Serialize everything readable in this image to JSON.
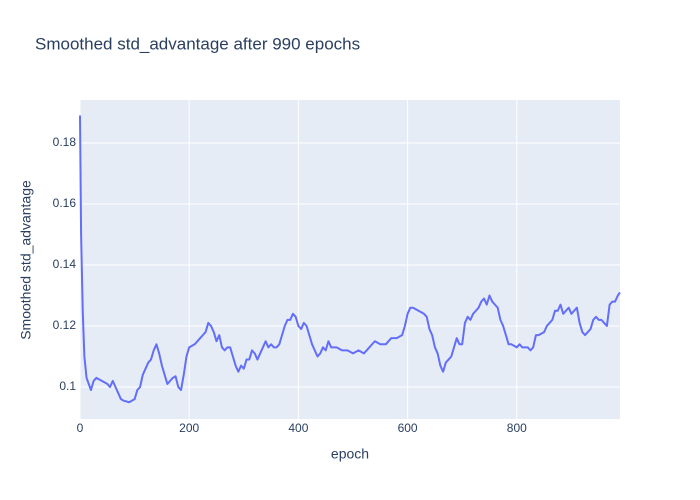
{
  "chart_data": {
    "type": "line",
    "title": "Smoothed std_advantage after 990 epochs",
    "x_label": "epoch",
    "y_label": "Smoothed std_advantage",
    "x": [
      0,
      2,
      5,
      8,
      12,
      20,
      25,
      30,
      40,
      50,
      55,
      60,
      65,
      70,
      75,
      80,
      90,
      100,
      105,
      110,
      115,
      120,
      125,
      130,
      135,
      140,
      145,
      150,
      155,
      160,
      165,
      170,
      175,
      180,
      185,
      190,
      195,
      200,
      210,
      220,
      225,
      230,
      235,
      240,
      245,
      250,
      255,
      260,
      265,
      270,
      275,
      280,
      285,
      290,
      295,
      300,
      305,
      310,
      315,
      320,
      325,
      330,
      335,
      340,
      345,
      350,
      355,
      360,
      365,
      370,
      375,
      380,
      385,
      390,
      395,
      400,
      405,
      410,
      415,
      420,
      425,
      430,
      435,
      440,
      445,
      450,
      455,
      460,
      470,
      480,
      490,
      500,
      510,
      520,
      530,
      540,
      550,
      560,
      570,
      580,
      590,
      595,
      600,
      605,
      610,
      620,
      630,
      635,
      640,
      645,
      650,
      655,
      660,
      665,
      670,
      675,
      680,
      685,
      690,
      695,
      700,
      705,
      710,
      715,
      720,
      725,
      730,
      735,
      740,
      745,
      750,
      755,
      760,
      765,
      770,
      775,
      780,
      785,
      790,
      800,
      805,
      810,
      820,
      825,
      830,
      835,
      840,
      850,
      855,
      860,
      865,
      870,
      875,
      880,
      885,
      890,
      895,
      900,
      905,
      910,
      915,
      920,
      925,
      930,
      935,
      940,
      945,
      950,
      955,
      960,
      965,
      970,
      975,
      980,
      985,
      989
    ],
    "series": [
      {
        "name": "std_advantage",
        "color": "#636efa",
        "values": [
          0.189,
          0.15,
          0.125,
          0.11,
          0.103,
          0.099,
          0.102,
          0.103,
          0.102,
          0.101,
          0.1,
          0.102,
          0.1,
          0.098,
          0.096,
          0.0955,
          0.095,
          0.096,
          0.099,
          0.1,
          0.104,
          0.106,
          0.108,
          0.109,
          0.112,
          0.114,
          0.111,
          0.107,
          0.104,
          0.101,
          0.102,
          0.103,
          0.1035,
          0.1,
          0.099,
          0.104,
          0.11,
          0.113,
          0.114,
          0.116,
          0.117,
          0.118,
          0.121,
          0.12,
          0.118,
          0.115,
          0.117,
          0.113,
          0.112,
          0.113,
          0.113,
          0.11,
          0.107,
          0.105,
          0.107,
          0.106,
          0.109,
          0.109,
          0.112,
          0.111,
          0.109,
          0.111,
          0.113,
          0.115,
          0.113,
          0.114,
          0.113,
          0.113,
          0.114,
          0.117,
          0.12,
          0.122,
          0.122,
          0.124,
          0.123,
          0.12,
          0.119,
          0.121,
          0.12,
          0.117,
          0.114,
          0.112,
          0.11,
          0.111,
          0.113,
          0.112,
          0.115,
          0.113,
          0.113,
          0.112,
          0.112,
          0.111,
          0.112,
          0.111,
          0.113,
          0.115,
          0.114,
          0.114,
          0.116,
          0.116,
          0.117,
          0.12,
          0.124,
          0.126,
          0.126,
          0.125,
          0.124,
          0.123,
          0.119,
          0.117,
          0.113,
          0.111,
          0.107,
          0.105,
          0.108,
          0.109,
          0.11,
          0.113,
          0.116,
          0.114,
          0.114,
          0.121,
          0.123,
          0.122,
          0.124,
          0.125,
          0.126,
          0.128,
          0.129,
          0.127,
          0.13,
          0.128,
          0.127,
          0.126,
          0.122,
          0.12,
          0.117,
          0.114,
          0.114,
          0.113,
          0.114,
          0.113,
          0.113,
          0.112,
          0.113,
          0.117,
          0.117,
          0.118,
          0.12,
          0.121,
          0.122,
          0.125,
          0.125,
          0.127,
          0.124,
          0.125,
          0.126,
          0.124,
          0.125,
          0.126,
          0.121,
          0.118,
          0.117,
          0.118,
          0.119,
          0.122,
          0.123,
          0.122,
          0.122,
          0.121,
          0.12,
          0.127,
          0.128,
          0.128,
          0.13,
          0.131
        ]
      }
    ],
    "xlim": [
      0,
      989
    ],
    "ylim": [
      0.0895,
      0.1941
    ],
    "xticks": [
      0,
      200,
      400,
      600,
      800
    ],
    "yticks": [
      0.1,
      0.12,
      0.14,
      0.16,
      0.18
    ],
    "grid": true
  }
}
